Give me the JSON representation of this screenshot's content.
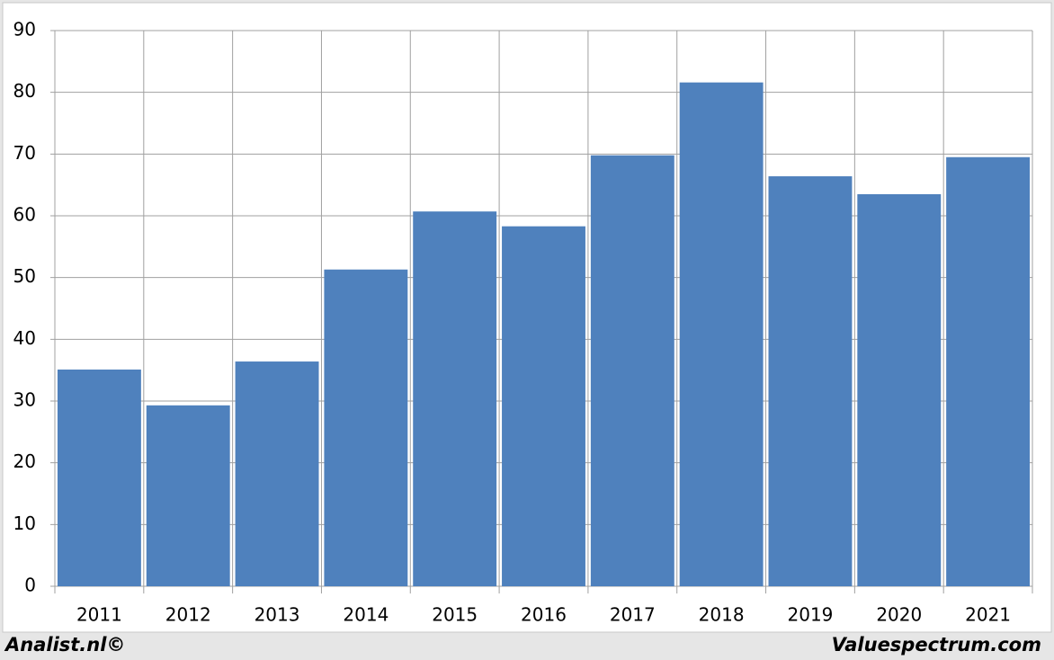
{
  "chart_data": {
    "type": "bar",
    "categories": [
      "2011",
      "2012",
      "2013",
      "2014",
      "2015",
      "2016",
      "2017",
      "2018",
      "2019",
      "2020",
      "2021"
    ],
    "values": [
      35.1,
      29.3,
      36.4,
      51.3,
      60.7,
      58.3,
      69.8,
      81.6,
      66.4,
      63.5,
      69.5
    ],
    "color": "#4f81bd",
    "ylim": [
      0,
      90
    ],
    "yticks": [
      0,
      10,
      20,
      30,
      40,
      50,
      60,
      70,
      80,
      90
    ],
    "grid": true,
    "credits": [
      "Analist.nl©",
      "Valuespectrum.com"
    ]
  }
}
